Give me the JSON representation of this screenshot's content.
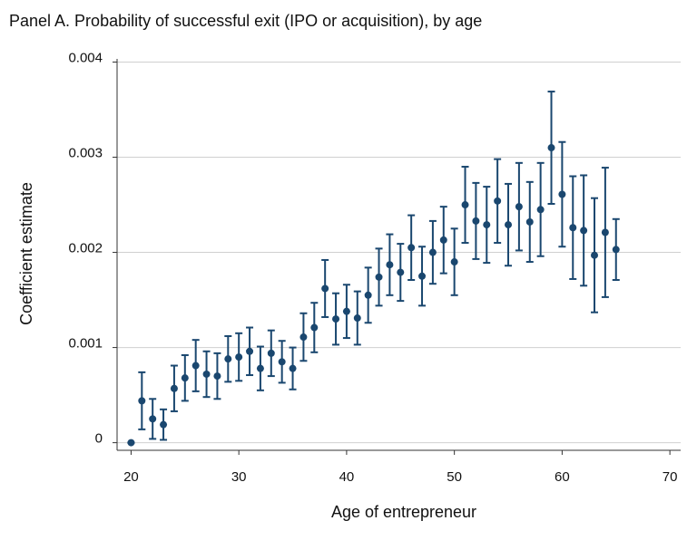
{
  "chart_data": {
    "type": "errorbar",
    "title": "Panel A. Probability of successful exit (IPO or acquisition), by age",
    "x_label": "Age of entrepreneur",
    "y_label": "Coefficient estimate",
    "xlim": [
      18.7,
      71
    ],
    "xticks": [
      20,
      30,
      40,
      50,
      60,
      70
    ],
    "ylim": [
      -8e-05,
      0.0041
    ],
    "yticks": [
      0,
      0.001,
      0.002,
      0.003,
      0.004
    ],
    "grid": true,
    "series": [
      {
        "color": "#1a476f",
        "x": [
          20,
          21,
          22,
          23,
          24,
          25,
          26,
          27,
          28,
          29,
          30,
          31,
          32,
          33,
          34,
          35,
          36,
          37,
          38,
          39,
          40,
          41,
          42,
          43,
          44,
          45,
          46,
          47,
          48,
          49,
          50,
          51,
          52,
          53,
          54,
          55,
          56,
          57,
          58,
          59,
          60,
          61,
          62,
          63,
          64,
          65
        ],
        "values": [
          0,
          0.00044,
          0.00025,
          0.00019,
          0.00057,
          0.00068,
          0.00081,
          0.00072,
          0.0007,
          0.00088,
          0.0009,
          0.00096,
          0.00078,
          0.00094,
          0.00085,
          0.00078,
          0.00111,
          0.00121,
          0.00162,
          0.0013,
          0.00138,
          0.00131,
          0.00155,
          0.00174,
          0.00187,
          0.00179,
          0.00205,
          0.00175,
          0.002,
          0.00213,
          0.0019,
          0.0025,
          0.00233,
          0.00229,
          0.00254,
          0.00229,
          0.00248,
          0.00232,
          0.00245,
          0.0031,
          0.00261,
          0.00226,
          0.00223,
          0.00197,
          0.00221,
          0.00203
        ],
        "errors": [
          0,
          0.0003,
          0.00021,
          0.00016,
          0.00024,
          0.00024,
          0.00027,
          0.00024,
          0.00024,
          0.00024,
          0.00025,
          0.00025,
          0.00023,
          0.00024,
          0.00022,
          0.00022,
          0.00025,
          0.00026,
          0.0003,
          0.00027,
          0.00028,
          0.00028,
          0.00029,
          0.0003,
          0.00032,
          0.0003,
          0.00034,
          0.00031,
          0.00033,
          0.00035,
          0.00035,
          0.0004,
          0.0004,
          0.0004,
          0.00044,
          0.00043,
          0.00046,
          0.00042,
          0.00049,
          0.00059,
          0.00055,
          0.00054,
          0.00058,
          0.0006,
          0.00068,
          0.00032
        ]
      }
    ]
  }
}
